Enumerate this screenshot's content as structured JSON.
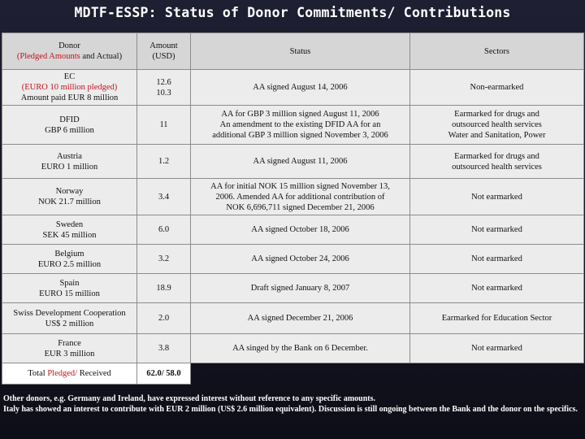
{
  "title": "MDTF-ESSP: Status of Donor Commitments/ Contributions",
  "headers": {
    "donor_line1": "Donor",
    "donor_pledged": "(Pledged Amounts",
    "donor_actual": " and Actual)",
    "amount_line1": "Amount",
    "amount_line2": "(USD)",
    "status": "Status",
    "sectors": "Sectors"
  },
  "rows": [
    {
      "donor": [
        "EC",
        "(EURO 10 million pledged)",
        "Amount paid EUR 8 million"
      ],
      "donor_red_line": 1,
      "amount": [
        "12.6",
        "10.3"
      ],
      "status": [
        "AA signed  August 14, 2006"
      ],
      "sectors": [
        "Non-earmarked"
      ]
    },
    {
      "donor": [
        "DFID",
        "GBP 6  million"
      ],
      "amount": [
        "11"
      ],
      "status": [
        "AA  for GBP 3 million signed August 11, 2006",
        "An amendment to the existing DFID AA for an",
        "additional GBP 3 million signed November 3, 2006"
      ],
      "sectors": [
        "Earmarked for drugs and",
        "outsourced health services",
        "Water and Sanitation, Power"
      ]
    },
    {
      "donor": [
        "Austria",
        "EURO 1 million"
      ],
      "amount": [
        "1.2"
      ],
      "status": [
        "AA signed August 11, 2006"
      ],
      "sectors": [
        "Earmarked for drugs and",
        "outsourced health services"
      ]
    },
    {
      "donor": [
        "Norway",
        "NOK  21.7 million"
      ],
      "amount": [
        "3.4"
      ],
      "status": [
        "AA for initial  NOK 15 million signed November 13,",
        "2006.  Amended AA for additional contribution of",
        "NOK 6,696,711 signed December 21, 2006"
      ],
      "sectors": [
        "Not earmarked"
      ]
    },
    {
      "donor": [
        "Sweden",
        "SEK 45  million"
      ],
      "amount": [
        "6.0"
      ],
      "status": [
        "AA signed October 18, 2006"
      ],
      "sectors": [
        "Not earmarked"
      ]
    },
    {
      "donor": [
        "Belgium",
        "EURO 2.5  million"
      ],
      "amount": [
        "3.2"
      ],
      "status": [
        "AA signed October 24, 2006"
      ],
      "sectors": [
        "Not earmarked"
      ]
    },
    {
      "donor": [
        "Spain",
        "EURO 15  million"
      ],
      "amount": [
        "18.9"
      ],
      "status": [
        "Draft signed January 8, 2007"
      ],
      "sectors": [
        "Not earmarked"
      ]
    },
    {
      "donor": [
        "Swiss Development Cooperation",
        "US$ 2 million"
      ],
      "amount": [
        "2.0"
      ],
      "status": [
        "AA signed December 21, 2006"
      ],
      "sectors": [
        "Earmarked for Education Sector"
      ]
    },
    {
      "donor": [
        "France",
        "EUR 3 million"
      ],
      "amount": [
        "3.8"
      ],
      "status": [
        "AA singed by the Bank on 6 December."
      ],
      "sectors": [
        "Not earmarked"
      ]
    }
  ],
  "total": {
    "label_prefix": "Total ",
    "label_pledged": "Pledged/",
    "label_suffix": " Received",
    "amount_pledged": "62.0/",
    "amount_received": " 58.0"
  },
  "notes": [
    "Other donors, e.g. Germany and Ireland, have expressed interest without reference to any specific amounts.",
    "Italy has showed an interest to contribute with EUR 2 million (US$ 2.6 million equivalent).  Discussion is still ongoing between the Bank and the donor on the specifics."
  ],
  "colors": {
    "accent_red": "#c0121c",
    "background": "#1a1a2e",
    "cell": "#ececec"
  }
}
